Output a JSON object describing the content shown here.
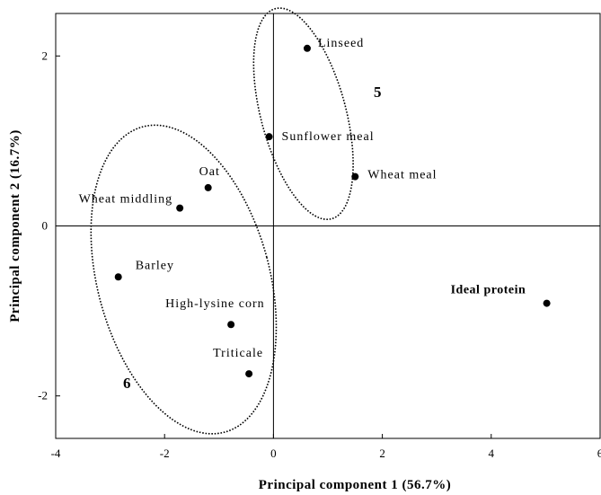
{
  "chart_data": {
    "type": "scatter",
    "xlabel": "Principal component 1 (56.7%)",
    "ylabel": "Principal component 2 (16.7%)",
    "xlim": [
      -4,
      6
    ],
    "ylim": [
      -2.5,
      2.5
    ],
    "xticks": [
      -4,
      -2,
      0,
      2,
      4,
      6
    ],
    "yticks": [
      -2,
      0,
      2
    ],
    "grid": false,
    "points": [
      {
        "label": "Linseed",
        "x": 0.62,
        "y": 2.09,
        "bold": false
      },
      {
        "label": "Sunflower meal",
        "x": -0.08,
        "y": 1.05,
        "bold": false
      },
      {
        "label": "Wheat meal",
        "x": 1.5,
        "y": 0.58,
        "bold": false
      },
      {
        "label": "Oat",
        "x": -1.2,
        "y": 0.45,
        "bold": false
      },
      {
        "label": "Wheat middling",
        "x": -1.72,
        "y": 0.21,
        "bold": false
      },
      {
        "label": "Barley",
        "x": -2.85,
        "y": -0.6,
        "bold": false
      },
      {
        "label": "High-lysine corn",
        "x": -0.78,
        "y": -1.16,
        "bold": false
      },
      {
        "label": "Triticale",
        "x": -0.45,
        "y": -1.74,
        "bold": false
      },
      {
        "label": "Ideal protein",
        "x": 5.02,
        "y": -0.91,
        "bold": true
      }
    ],
    "groups": [
      {
        "label": "5",
        "cx": 0.55,
        "cy": 1.32,
        "rx": 0.78,
        "ry": 1.28,
        "angle_deg": -15
      },
      {
        "label": "6",
        "cx": -1.65,
        "cy": -0.63,
        "rx": 1.58,
        "ry": 1.86,
        "angle_deg": -15
      }
    ]
  }
}
